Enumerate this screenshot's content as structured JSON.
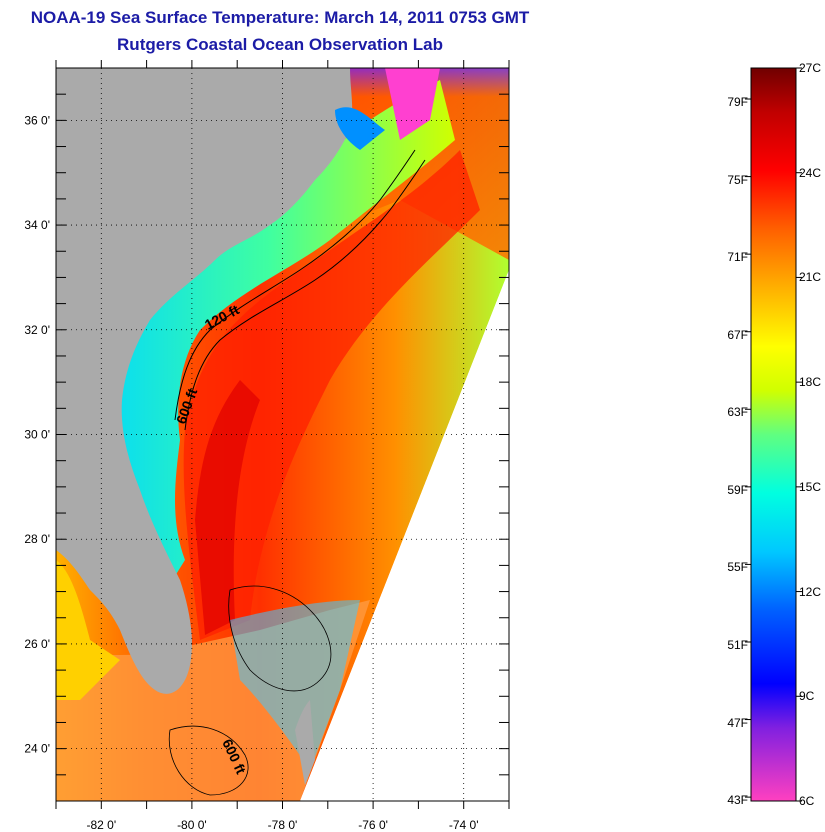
{
  "title": "NOAA-19 Sea Surface Temperature:  March 14, 2011 0753 GMT",
  "subtitle": "Rutgers Coastal Ocean Observation Lab",
  "map": {
    "lon_range": [
      -83,
      -73
    ],
    "lat_range": [
      23,
      37
    ],
    "lon_ticks": [
      -82,
      -80,
      -78,
      -76,
      -74
    ],
    "lon_tick_labels": [
      "-82 0'",
      "-80 0'",
      "-78 0'",
      "-76 0'",
      "-74 0'"
    ],
    "lat_ticks": [
      24,
      26,
      28,
      30,
      32,
      34,
      36
    ],
    "lat_tick_labels": [
      "24 0'",
      "26 0'",
      "28 0'",
      "30 0'",
      "32 0'",
      "34 0'",
      "36 0'"
    ],
    "grid": true,
    "land_color": "#aaaaaa",
    "contour_labels": [
      "120 ft",
      "600 ft",
      "600 ft"
    ]
  },
  "colorbar": {
    "fahrenheit_labels": [
      "79F",
      "75F",
      "71F",
      "67F",
      "63F",
      "59F",
      "55F",
      "51F",
      "47F",
      "43F"
    ],
    "fahrenheit_values": [
      79,
      75,
      71,
      67,
      63,
      59,
      55,
      51,
      47,
      43
    ],
    "celsius_labels": [
      "27C",
      "24C",
      "21C",
      "18C",
      "15C",
      "12C",
      "9C",
      "6C"
    ],
    "celsius_values": [
      27,
      24,
      21,
      18,
      15,
      12,
      9,
      6
    ],
    "range_c": [
      6,
      27
    ],
    "colors": [
      "#ff40c0",
      "#8020e0",
      "#0000ff",
      "#0060ff",
      "#00c8ff",
      "#00ffe0",
      "#60ff80",
      "#d0ff00",
      "#ffff00",
      "#ffb000",
      "#ff6000",
      "#ff0000",
      "#c00000",
      "#700000"
    ]
  }
}
